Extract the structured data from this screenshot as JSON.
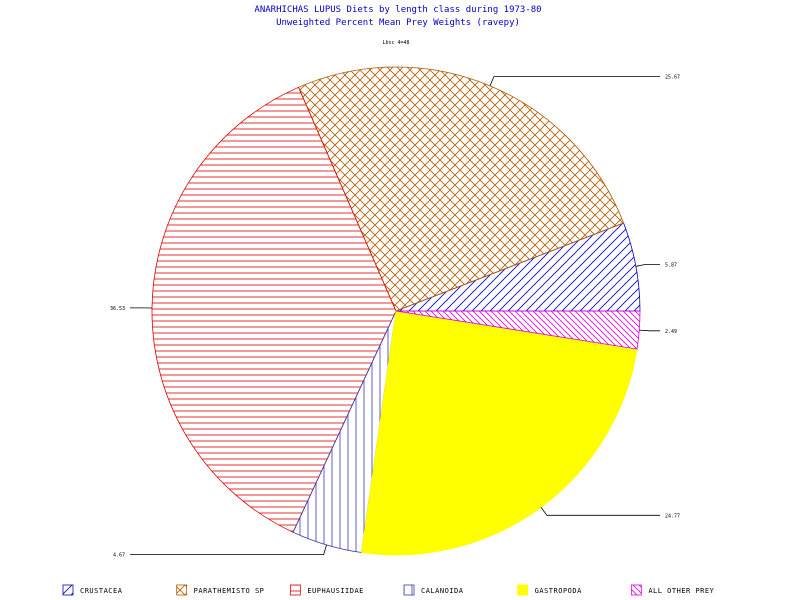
{
  "chart_data": {
    "type": "pie",
    "title": "ANARHICHAS LUPUS Diets by length class during 1973-80",
    "subtitle": "Unweighted Percent Mean Prey Weights (ravepy)",
    "top_label": "Lbsc 4=48",
    "slices": [
      {
        "name": "CRUSTACEA",
        "value": 5.87,
        "label": "5.87",
        "color": "#0000c8",
        "pattern": "diag-up"
      },
      {
        "name": "PARATHEMISTO SP",
        "value": 25.67,
        "label": "25.67",
        "color": "#b05a00",
        "pattern": "crosshatch"
      },
      {
        "name": "EUPHAUSIIDAE",
        "value": 36.53,
        "label": "36.53",
        "color": "#e00000",
        "pattern": "horizontal"
      },
      {
        "name": "CALANOIDA",
        "value": 4.67,
        "label": "4.67",
        "color": "#3c3cb4",
        "pattern": "vertical"
      },
      {
        "name": "GASTROPODA",
        "value": 24.77,
        "label": "24.77",
        "color": "#ffff00",
        "pattern": "solid"
      },
      {
        "name": "ALL OTHER PREY",
        "value": 2.49,
        "label": "2.49",
        "color": "#e000e0",
        "pattern": "diag-down"
      }
    ],
    "legend_position": "bottom"
  }
}
